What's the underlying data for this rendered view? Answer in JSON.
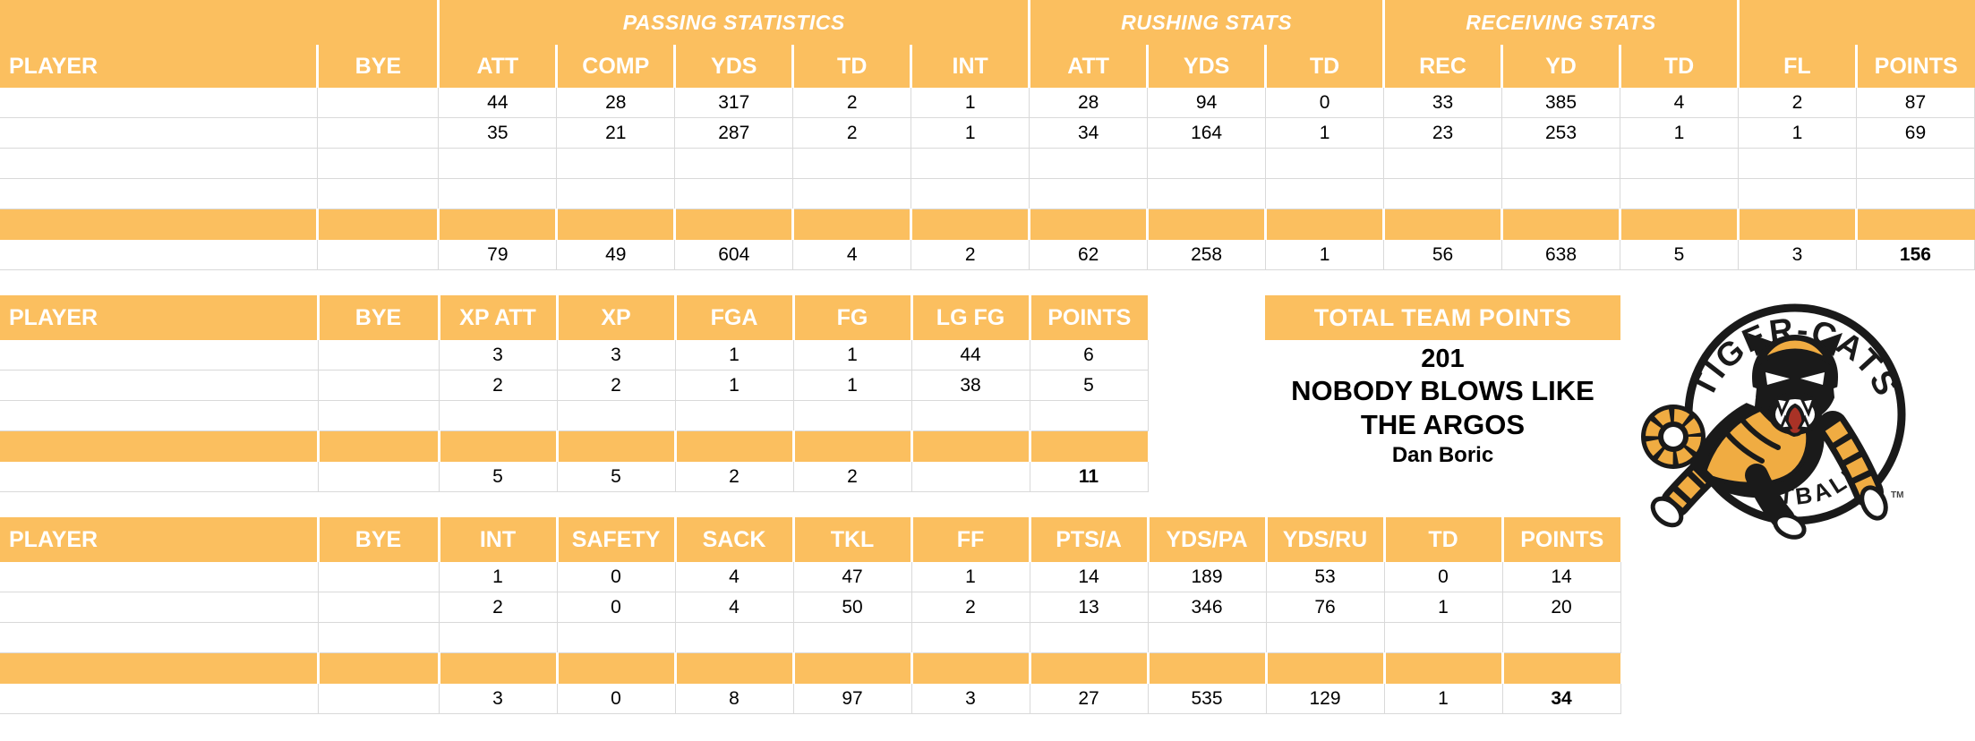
{
  "colors": {
    "band_orange": "#FBBF5F",
    "gridline": "#D9D9D9",
    "header_text": "#FFFFFF",
    "text": "#000000",
    "logo_black": "#1A1A1A",
    "logo_gold": "#F0AC42",
    "logo_red": "#A93226"
  },
  "tables": {
    "offense": {
      "group_headers": [
        {
          "label": "",
          "span": 2
        },
        {
          "label": "PASSING STATISTICS",
          "span": 5
        },
        {
          "label": "RUSHING STATS",
          "span": 3
        },
        {
          "label": "RECEIVING STATS",
          "span": 3
        },
        {
          "label": "",
          "span": 2
        }
      ],
      "columns": [
        "PLAYER",
        "BYE",
        "ATT",
        "COMP",
        "YDS",
        "TD",
        "INT",
        "ATT",
        "YDS",
        "TD",
        "REC",
        "YD",
        "TD",
        "FL",
        "POINTS"
      ],
      "rows": [
        [
          "",
          "",
          "44",
          "28",
          "317",
          "2",
          "1",
          "28",
          "94",
          "0",
          "33",
          "385",
          "4",
          "2",
          "87"
        ],
        [
          "",
          "",
          "35",
          "21",
          "287",
          "2",
          "1",
          "34",
          "164",
          "1",
          "23",
          "253",
          "1",
          "1",
          "69"
        ],
        [
          "",
          "",
          "",
          "",
          "",
          "",
          "",
          "",
          "",
          "",
          "",
          "",
          "",
          "",
          ""
        ],
        [
          "",
          "",
          "",
          "",
          "",
          "",
          "",
          "",
          "",
          "",
          "",
          "",
          "",
          "",
          ""
        ]
      ],
      "totals": [
        "",
        "",
        "79",
        "49",
        "604",
        "4",
        "2",
        "62",
        "258",
        "1",
        "56",
        "638",
        "5",
        "3",
        "156"
      ]
    },
    "kicking": {
      "columns": [
        "PLAYER",
        "BYE",
        "XP ATT",
        "XP",
        "FGA",
        "FG",
        "LG FG",
        "POINTS"
      ],
      "rows": [
        [
          "",
          "",
          "3",
          "3",
          "1",
          "1",
          "44",
          "6"
        ],
        [
          "",
          "",
          "2",
          "2",
          "1",
          "1",
          "38",
          "5"
        ],
        [
          "",
          "",
          "",
          "",
          "",
          "",
          "",
          ""
        ]
      ],
      "totals": [
        "",
        "",
        "5",
        "5",
        "2",
        "2",
        "",
        "11"
      ]
    },
    "defense": {
      "columns": [
        "PLAYER",
        "BYE",
        "INT",
        "SAFETY",
        "SACK",
        "TKL",
        "FF",
        "PTS/A",
        "YDS/PA",
        "YDS/RU",
        "TD",
        "POINTS"
      ],
      "rows": [
        [
          "",
          "",
          "1",
          "0",
          "4",
          "47",
          "1",
          "14",
          "189",
          "53",
          "0",
          "14"
        ],
        [
          "",
          "",
          "2",
          "0",
          "4",
          "50",
          "2",
          "13",
          "346",
          "76",
          "1",
          "20"
        ],
        [
          "",
          "",
          "",
          "",
          "",
          "",
          "",
          "",
          "",
          "",
          "",
          ""
        ]
      ],
      "totals": [
        "",
        "",
        "3",
        "0",
        "8",
        "97",
        "3",
        "27",
        "535",
        "129",
        "1",
        "34"
      ]
    }
  },
  "team_points": {
    "header": "TOTAL TEAM POINTS",
    "value": "201",
    "team_name": "NOBODY BLOWS LIKE THE ARGOS",
    "owner": "Dan Boric"
  },
  "logo": {
    "top_text": "TIGER-CATS",
    "bottom_text": "FOOTBALL",
    "trademark": "TM"
  }
}
